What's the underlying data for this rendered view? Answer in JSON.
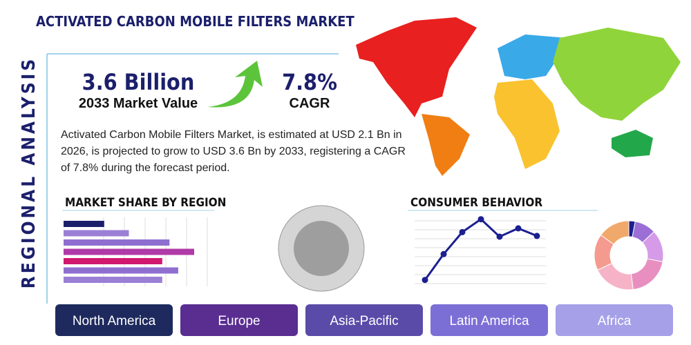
{
  "title": "ACTIVATED CARBON MOBILE FILTERS MARKET",
  "side_label": "REGIONAL ANALYSIS",
  "stats": [
    {
      "value": "3.6 Billion",
      "label": "2033 Market Value"
    },
    {
      "value": "7.8%",
      "label": "CAGR"
    }
  ],
  "description": "Activated Carbon Mobile Filters Market, is estimated at USD 2.1 Bn in 2026, is projected to grow to USD 3.6 Bn by 2033, registering a CAGR of 7.8% during the forecast period.",
  "market_share": {
    "type": "bar",
    "title": "MARKET SHARE BY REGION",
    "xlim": [
      0,
      100
    ],
    "values": [
      28,
      45,
      73,
      90,
      68,
      79,
      68
    ],
    "colors": [
      "#1b1f6b",
      "#9b7fd6",
      "#8e6fd0",
      "#b03aa8",
      "#d0186f",
      "#8e6fd0",
      "#9b7fd6"
    ]
  },
  "consumer_behavior": {
    "type": "line",
    "title": "CONSUMER BEHAVIOR",
    "ylim": [
      0,
      100
    ],
    "values": [
      13,
      47,
      76,
      93,
      70,
      81,
      71
    ],
    "color": "#1b1f8f"
  },
  "donut": {
    "type": "pie",
    "values": [
      3,
      10,
      15,
      20,
      20,
      17,
      15
    ],
    "colors": [
      "#1b1f8f",
      "#9b6fd6",
      "#d59be8",
      "#e88fc0",
      "#f6b3c8",
      "#f59a8f",
      "#f0a96a"
    ]
  },
  "regions": [
    "North America",
    "Europe",
    "Asia-Pacific",
    "Latin America",
    "Africa"
  ]
}
